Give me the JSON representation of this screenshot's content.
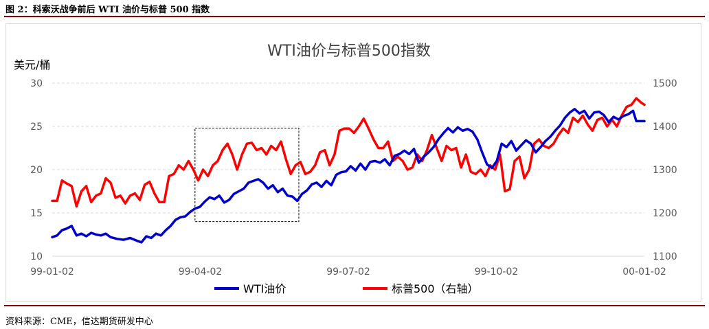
{
  "caption": "图 2：科索沃战争前后 WTI 油价与标普 500 指数",
  "source": "资料来源：CME，信达期货研发中心",
  "chart_data": {
    "type": "line",
    "title": "WTI油价与标普500指数",
    "y_left_label": "美元/桶",
    "y_left_lim": [
      10,
      30
    ],
    "y_left_ticks": [
      "10",
      "15",
      "20",
      "25",
      "30"
    ],
    "y_right_lim": [
      1100,
      1500
    ],
    "y_right_ticks": [
      "1100",
      "1200",
      "1300",
      "1400",
      "1500"
    ],
    "x_ticks": [
      "99-01-02",
      "99-04-02",
      "99-07-02",
      "99-10-02",
      "00-01-02"
    ],
    "x_range_days": [
      0,
      365
    ],
    "grid": "horizontal-dashed",
    "legend_position": "bottom",
    "highlight_box": {
      "x_start_day": 88,
      "x_end_day": 152,
      "y_left_range": [
        14,
        24.8
      ],
      "style": "dashed"
    },
    "series": [
      {
        "name": "WTI油价",
        "axis": "left",
        "color": "#0000cc",
        "points": [
          [
            0,
            12.2
          ],
          [
            3,
            12.4
          ],
          [
            6,
            13.0
          ],
          [
            9,
            13.2
          ],
          [
            12,
            13.5
          ],
          [
            15,
            12.4
          ],
          [
            18,
            12.6
          ],
          [
            21,
            12.3
          ],
          [
            24,
            12.7
          ],
          [
            27,
            12.5
          ],
          [
            30,
            12.4
          ],
          [
            33,
            12.6
          ],
          [
            36,
            12.2
          ],
          [
            40,
            12.0
          ],
          [
            44,
            11.9
          ],
          [
            48,
            12.1
          ],
          [
            52,
            11.8
          ],
          [
            55,
            11.6
          ],
          [
            58,
            12.3
          ],
          [
            61,
            12.1
          ],
          [
            64,
            12.6
          ],
          [
            67,
            12.4
          ],
          [
            70,
            13.0
          ],
          [
            73,
            13.5
          ],
          [
            76,
            14.2
          ],
          [
            79,
            14.5
          ],
          [
            82,
            14.6
          ],
          [
            85,
            15.1
          ],
          [
            88,
            15.5
          ],
          [
            91,
            15.7
          ],
          [
            94,
            16.3
          ],
          [
            97,
            16.8
          ],
          [
            100,
            16.6
          ],
          [
            103,
            17.0
          ],
          [
            106,
            16.2
          ],
          [
            109,
            16.5
          ],
          [
            112,
            17.2
          ],
          [
            115,
            17.5
          ],
          [
            118,
            17.8
          ],
          [
            121,
            18.5
          ],
          [
            124,
            18.7
          ],
          [
            127,
            18.9
          ],
          [
            130,
            18.5
          ],
          [
            133,
            17.8
          ],
          [
            136,
            18.2
          ],
          [
            139,
            17.4
          ],
          [
            142,
            17.8
          ],
          [
            145,
            17.0
          ],
          [
            148,
            16.9
          ],
          [
            151,
            16.4
          ],
          [
            154,
            17.2
          ],
          [
            157,
            17.6
          ],
          [
            160,
            18.3
          ],
          [
            163,
            18.5
          ],
          [
            166,
            18.0
          ],
          [
            169,
            18.7
          ],
          [
            172,
            18.2
          ],
          [
            175,
            19.4
          ],
          [
            178,
            19.7
          ],
          [
            181,
            19.8
          ],
          [
            184,
            20.4
          ],
          [
            187,
            19.9
          ],
          [
            190,
            20.7
          ],
          [
            193,
            20.0
          ],
          [
            196,
            20.9
          ],
          [
            199,
            21.0
          ],
          [
            202,
            20.8
          ],
          [
            205,
            21.2
          ],
          [
            208,
            20.5
          ],
          [
            211,
            21.6
          ],
          [
            214,
            21.8
          ],
          [
            217,
            22.2
          ],
          [
            220,
            21.8
          ],
          [
            223,
            22.4
          ],
          [
            226,
            20.8
          ],
          [
            229,
            21.5
          ],
          [
            232,
            22.0
          ],
          [
            235,
            22.6
          ],
          [
            238,
            23.5
          ],
          [
            241,
            24.2
          ],
          [
            244,
            24.8
          ],
          [
            247,
            24.3
          ],
          [
            250,
            24.9
          ],
          [
            253,
            24.5
          ],
          [
            256,
            24.7
          ],
          [
            259,
            24.4
          ],
          [
            262,
            23.5
          ],
          [
            265,
            22.0
          ],
          [
            268,
            20.6
          ],
          [
            271,
            20.2
          ],
          [
            274,
            21.0
          ],
          [
            277,
            23.0
          ],
          [
            280,
            22.6
          ],
          [
            283,
            23.3
          ],
          [
            286,
            22.2
          ],
          [
            289,
            22.8
          ],
          [
            292,
            23.4
          ],
          [
            295,
            23.0
          ],
          [
            298,
            22.0
          ],
          [
            301,
            22.6
          ],
          [
            304,
            23.3
          ],
          [
            307,
            23.8
          ],
          [
            310,
            24.5
          ],
          [
            313,
            25.1
          ],
          [
            316,
            26.0
          ],
          [
            319,
            26.6
          ],
          [
            322,
            27.0
          ],
          [
            325,
            26.5
          ],
          [
            328,
            26.8
          ],
          [
            331,
            25.9
          ],
          [
            334,
            26.6
          ],
          [
            337,
            26.7
          ],
          [
            340,
            26.3
          ],
          [
            343,
            25.5
          ],
          [
            346,
            26.1
          ],
          [
            349,
            25.8
          ],
          [
            352,
            26.2
          ],
          [
            355,
            26.4
          ],
          [
            358,
            26.8
          ],
          [
            360,
            25.6
          ],
          [
            365,
            25.6
          ]
        ]
      },
      {
        "name": "标普500（右轴）",
        "axis": "right",
        "color": "#ff0000",
        "points": [
          [
            0,
            1228
          ],
          [
            3,
            1228
          ],
          [
            6,
            1275
          ],
          [
            9,
            1268
          ],
          [
            12,
            1262
          ],
          [
            15,
            1215
          ],
          [
            18,
            1250
          ],
          [
            21,
            1262
          ],
          [
            24,
            1225
          ],
          [
            27,
            1240
          ],
          [
            30,
            1245
          ],
          [
            33,
            1280
          ],
          [
            36,
            1270
          ],
          [
            39,
            1235
          ],
          [
            42,
            1240
          ],
          [
            45,
            1222
          ],
          [
            48,
            1240
          ],
          [
            51,
            1245
          ],
          [
            54,
            1230
          ],
          [
            57,
            1265
          ],
          [
            60,
            1272
          ],
          [
            63,
            1245
          ],
          [
            66,
            1225
          ],
          [
            69,
            1225
          ],
          [
            72,
            1285
          ],
          [
            75,
            1290
          ],
          [
            78,
            1310
          ],
          [
            81,
            1300
          ],
          [
            84,
            1320
          ],
          [
            87,
            1300
          ],
          [
            90,
            1275
          ],
          [
            93,
            1300
          ],
          [
            96,
            1285
          ],
          [
            99,
            1310
          ],
          [
            102,
            1320
          ],
          [
            105,
            1345
          ],
          [
            108,
            1360
          ],
          [
            111,
            1335
          ],
          [
            114,
            1300
          ],
          [
            117,
            1335
          ],
          [
            120,
            1360
          ],
          [
            123,
            1362
          ],
          [
            126,
            1345
          ],
          [
            129,
            1350
          ],
          [
            132,
            1335
          ],
          [
            135,
            1355
          ],
          [
            138,
            1345
          ],
          [
            141,
            1365
          ],
          [
            144,
            1325
          ],
          [
            147,
            1290
          ],
          [
            150,
            1310
          ],
          [
            153,
            1318
          ],
          [
            156,
            1290
          ],
          [
            159,
            1295
          ],
          [
            162,
            1310
          ],
          [
            165,
            1340
          ],
          [
            168,
            1345
          ],
          [
            171,
            1310
          ],
          [
            174,
            1335
          ],
          [
            177,
            1390
          ],
          [
            180,
            1395
          ],
          [
            183,
            1395
          ],
          [
            186,
            1385
          ],
          [
            189,
            1400
          ],
          [
            192,
            1418
          ],
          [
            195,
            1395
          ],
          [
            198,
            1370
          ],
          [
            201,
            1350
          ],
          [
            204,
            1350
          ],
          [
            207,
            1365
          ],
          [
            210,
            1320
          ],
          [
            213,
            1330
          ],
          [
            216,
            1320
          ],
          [
            219,
            1300
          ],
          [
            222,
            1305
          ],
          [
            225,
            1335
          ],
          [
            228,
            1320
          ],
          [
            231,
            1345
          ],
          [
            234,
            1380
          ],
          [
            237,
            1350
          ],
          [
            240,
            1320
          ],
          [
            243,
            1355
          ],
          [
            246,
            1345
          ],
          [
            249,
            1350
          ],
          [
            252,
            1305
          ],
          [
            255,
            1335
          ],
          [
            258,
            1295
          ],
          [
            261,
            1290
          ],
          [
            264,
            1300
          ],
          [
            267,
            1285
          ],
          [
            270,
            1310
          ],
          [
            273,
            1300
          ],
          [
            276,
            1335
          ],
          [
            279,
            1250
          ],
          [
            282,
            1255
          ],
          [
            285,
            1320
          ],
          [
            288,
            1330
          ],
          [
            291,
            1280
          ],
          [
            294,
            1300
          ],
          [
            297,
            1360
          ],
          [
            300,
            1370
          ],
          [
            303,
            1355
          ],
          [
            306,
            1350
          ],
          [
            309,
            1360
          ],
          [
            312,
            1380
          ],
          [
            315,
            1395
          ],
          [
            318,
            1385
          ],
          [
            321,
            1420
          ],
          [
            324,
            1410
          ],
          [
            327,
            1425
          ],
          [
            330,
            1405
          ],
          [
            333,
            1390
          ],
          [
            336,
            1415
          ],
          [
            339,
            1420
          ],
          [
            342,
            1400
          ],
          [
            345,
            1415
          ],
          [
            348,
            1400
          ],
          [
            351,
            1425
          ],
          [
            354,
            1445
          ],
          [
            357,
            1450
          ],
          [
            360,
            1465
          ],
          [
            363,
            1455
          ],
          [
            365,
            1450
          ]
        ]
      }
    ]
  }
}
